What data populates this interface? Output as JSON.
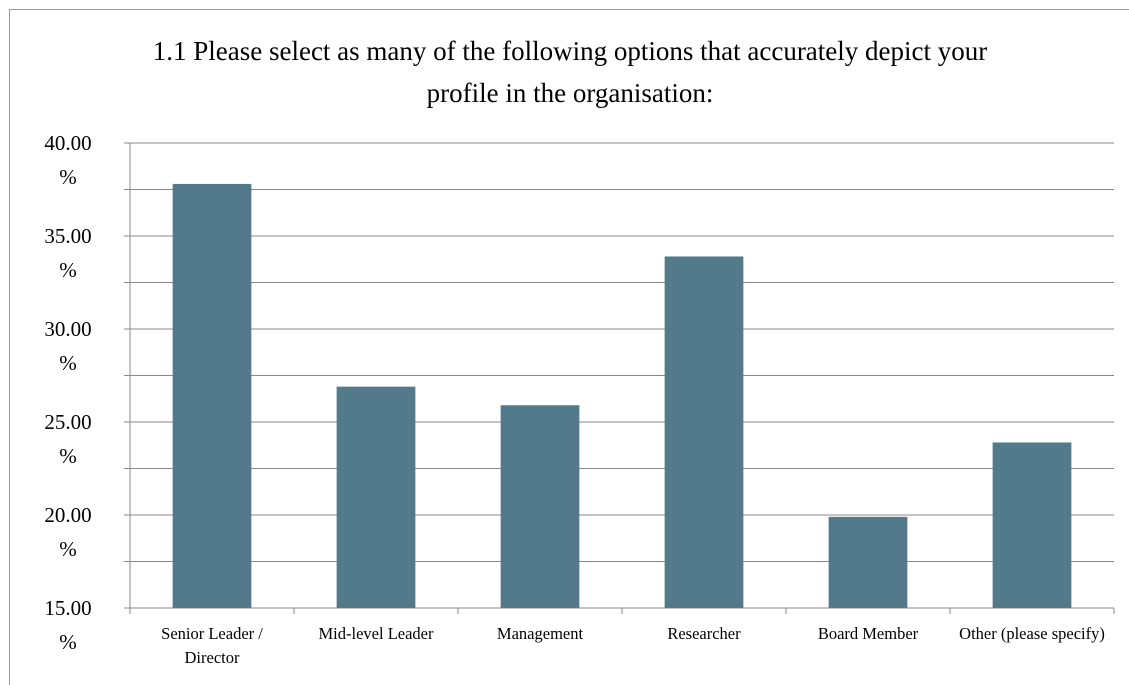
{
  "chart_data": {
    "type": "bar",
    "title": "1.1 Please select as many of the following options that accurately depict your profile in the organisation:",
    "categories": [
      "Senior Leader / Director",
      "Mid-level Leader",
      "Management",
      "Researcher",
      "Board Member",
      "Other (please specify)"
    ],
    "values": [
      37.8,
      26.9,
      25.9,
      33.9,
      19.9,
      23.9
    ],
    "color": "#527a8b",
    "ylim": [
      15,
      40
    ],
    "yticks": [
      {
        "value": 15,
        "label": "15.00 %"
      },
      {
        "value": 20,
        "label": "20.00 %"
      },
      {
        "value": 25,
        "label": "25.00 %"
      },
      {
        "value": 30,
        "label": "30.00 %"
      },
      {
        "value": 35,
        "label": "35.00 %"
      },
      {
        "value": 40,
        "label": "40.00 %"
      }
    ],
    "minor_yticks": [
      17.5,
      22.5,
      27.5,
      32.5,
      37.5
    ],
    "grid": true
  }
}
